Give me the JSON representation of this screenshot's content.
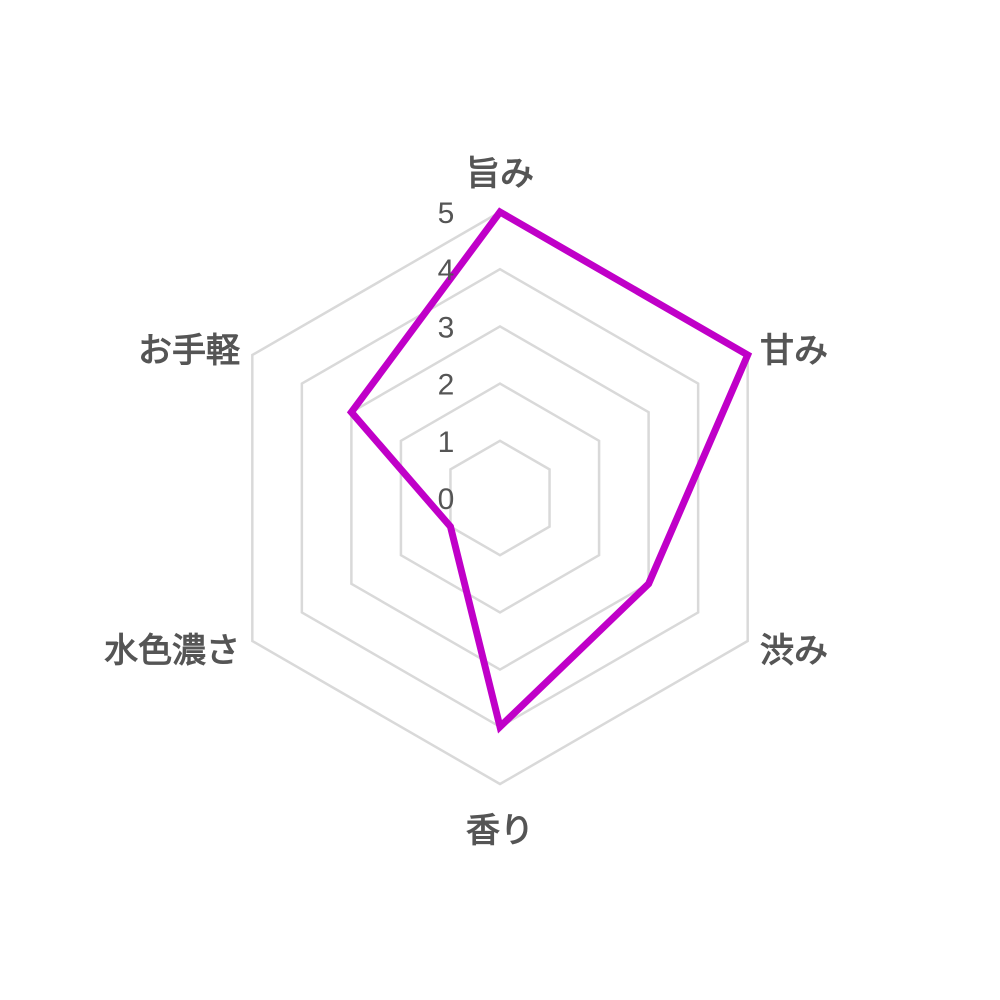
{
  "chart_data": {
    "type": "radar",
    "categories": [
      "旨み",
      "甘み",
      "渋み",
      "香り",
      "水色濃さ",
      "お手軽"
    ],
    "values": [
      5,
      5,
      3,
      4,
      1,
      3
    ],
    "rlim": [
      0,
      5
    ],
    "ticks": [
      "0",
      "1",
      "2",
      "3",
      "4",
      "5"
    ],
    "grid": true,
    "legend": "none",
    "colors": {
      "series": "#c000c8",
      "grid": "#d9d9d9",
      "text": "#555555"
    }
  }
}
